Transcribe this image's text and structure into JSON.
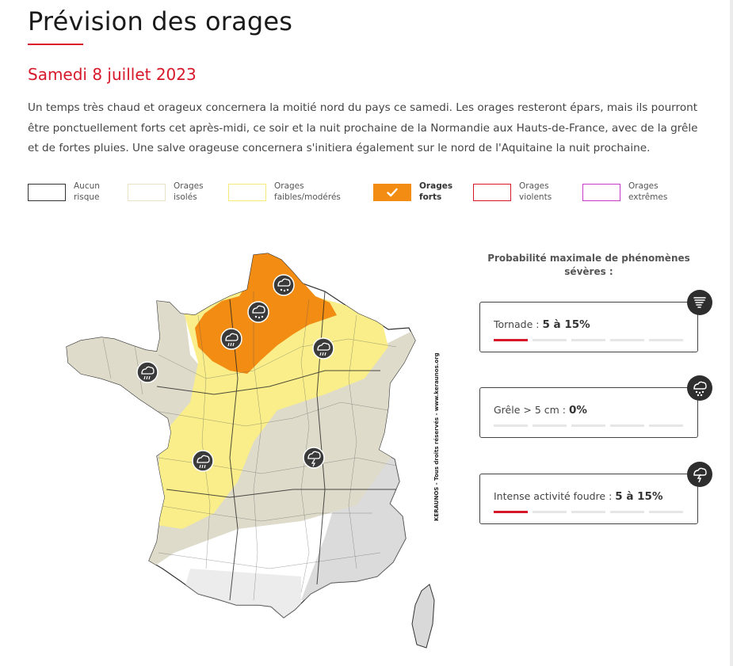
{
  "page": {
    "title": "Prévision des orages",
    "date": "Samedi 8 juillet 2023",
    "description": "Un temps très chaud et orageux concernera la moitié nord du pays ce samedi. Les orages resteront épars, mais ils pourront être ponctuellement forts cet après-midi, ce soir et la nuit prochaine de la Normandie aux Hauts-de-France, avec de la grêle et de fortes pluies. Une salve orageuse concernera s'initiera également sur le nord de l'Aquitaine la nuit prochaine."
  },
  "legend": [
    {
      "label": "Aucun\nrisque",
      "fill": "#ffffff",
      "border": "#333333",
      "selected": false
    },
    {
      "label": "Orages\nisolés",
      "fill": "#ffffff",
      "border": "#e9e3c4",
      "selected": false
    },
    {
      "label": "Orages\nfaibles/modérés",
      "fill": "#ffffff",
      "border": "#f6e97a",
      "selected": false
    },
    {
      "label": "Orages\nforts",
      "fill": "#f28c13",
      "border": "#f28c13",
      "selected": true
    },
    {
      "label": "Orages\nviolents",
      "fill": "#ffffff",
      "border": "#d7182a",
      "selected": false
    },
    {
      "label": "Orages\nextrêmes",
      "fill": "#ffffff",
      "border": "#c63ac9",
      "selected": false
    }
  ],
  "map": {
    "watermark": "KERAUNOS - Tous droits réservés - www.keraunos.org",
    "colors": {
      "isolated": "#dedbca",
      "weak": "#f9ee8a",
      "strong": "#f28c13",
      "land": "#ffffff",
      "relief": "#c8c8c8",
      "icon": "#3a3a3a"
    },
    "icons": [
      {
        "name": "rain-storm-icon",
        "region": "Bretagne"
      },
      {
        "name": "hail-storm-icon",
        "region": "Hauts-de-France"
      },
      {
        "name": "hail-storm-icon",
        "region": "Picardie"
      },
      {
        "name": "rain-storm-icon",
        "region": "Normandie"
      },
      {
        "name": "rain-storm-icon",
        "region": "Champagne"
      },
      {
        "name": "rain-storm-icon",
        "region": "Charente"
      },
      {
        "name": "lightning-storm-icon",
        "region": "Auvergne"
      }
    ]
  },
  "probabilities": {
    "title": "Probabilité maximale de phénomènes sévères :",
    "items": [
      {
        "label": "Tornade : ",
        "value": "5 à 15%",
        "level": 1,
        "levels_total": 5,
        "icon": "tornado-icon"
      },
      {
        "label": "Grêle > 5 cm : ",
        "value": "0%",
        "level": 0,
        "levels_total": 5,
        "icon": "hail-icon"
      },
      {
        "label": "Intense activité foudre : ",
        "value": "5 à 15%",
        "level": 1,
        "levels_total": 5,
        "icon": "lightning-icon"
      }
    ],
    "active_color": "#d7182a"
  }
}
